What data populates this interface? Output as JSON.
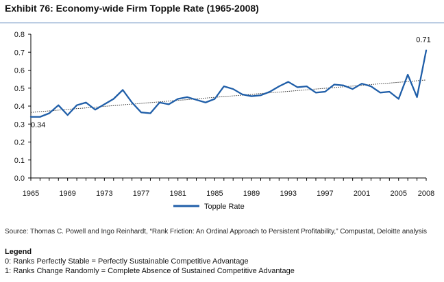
{
  "title": "Exhibit 76: Economy-wide Firm Topple Rate (1965-2008)",
  "source": "Source: Thomas C. Powell and Ingo Reinhardt, “Rank Friction: An Ordinal Approach to Persistent Profitability,” Compustat, Deloitte analysis",
  "legend_note": {
    "heading": "Legend",
    "lines": [
      "0: Ranks Perfectly Stable = Perfectly Sustainable Competitive Advantage",
      "1: Ranks Change Randomly = Complete Absence of Sustained Competitive Advantage"
    ]
  },
  "chart_data": {
    "type": "line",
    "x": [
      1965,
      1966,
      1967,
      1968,
      1969,
      1970,
      1971,
      1972,
      1973,
      1974,
      1975,
      1976,
      1977,
      1978,
      1979,
      1980,
      1981,
      1982,
      1983,
      1984,
      1985,
      1986,
      1987,
      1988,
      1989,
      1990,
      1991,
      1992,
      1993,
      1994,
      1995,
      1996,
      1997,
      1998,
      1999,
      2000,
      2001,
      2002,
      2003,
      2004,
      2005,
      2006,
      2007,
      2008
    ],
    "series": [
      {
        "name": "Topple Rate",
        "color": "#1f5ea8",
        "values": [
          0.34,
          0.34,
          0.36,
          0.405,
          0.35,
          0.405,
          0.42,
          0.38,
          0.41,
          0.44,
          0.49,
          0.42,
          0.365,
          0.36,
          0.42,
          0.41,
          0.44,
          0.45,
          0.435,
          0.42,
          0.44,
          0.51,
          0.495,
          0.465,
          0.455,
          0.46,
          0.48,
          0.51,
          0.535,
          0.505,
          0.51,
          0.475,
          0.48,
          0.52,
          0.515,
          0.495,
          0.525,
          0.51,
          0.475,
          0.48,
          0.44,
          0.575,
          0.45,
          0.71
        ]
      }
    ],
    "trend": {
      "start": 0.365,
      "end": 0.545
    },
    "x_tick_labels": [
      "1965",
      "1969",
      "1973",
      "1977",
      "1981",
      "1985",
      "1989",
      "1993",
      "1997",
      "2001",
      "2005",
      "2008"
    ],
    "y_tick_labels": [
      "0.0",
      "0.1",
      "0.2",
      "0.3",
      "0.4",
      "0.5",
      "0.6",
      "0.7",
      "0.8"
    ],
    "ylim": [
      0,
      0.8
    ],
    "annotations": [
      {
        "text": "0.34",
        "x": 1965,
        "y": 0.34
      },
      {
        "text": "0.71",
        "x": 2008,
        "y": 0.71
      }
    ],
    "legend_label": "Topple Rate",
    "legend_position": "bottom-center",
    "grid": false
  }
}
